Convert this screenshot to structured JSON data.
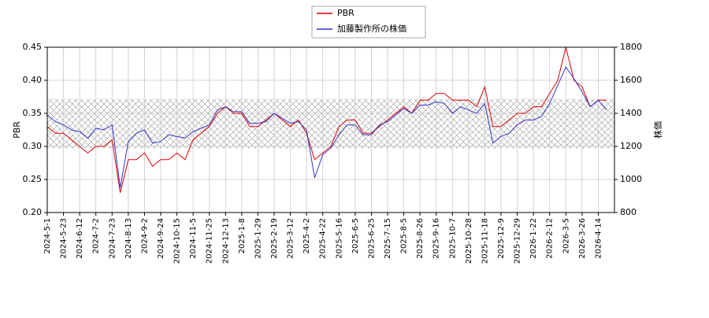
{
  "chart_data": {
    "type": "line",
    "y_label": "PBR",
    "y2_label": "株価",
    "categories": [
      "2024-5-1",
      null,
      "2024-5-23",
      null,
      "2024-6-12",
      null,
      "2024-7-2",
      null,
      "2024-7-23",
      null,
      "2024-8-13",
      null,
      "2024-9-2",
      null,
      "2024-9-24",
      null,
      "2024-10-15",
      null,
      "2024-11-5",
      null,
      "2024-11-25",
      null,
      "2024-12-13",
      null,
      "2025-1-8",
      null,
      "2025-1-29",
      null,
      "2025-2-19",
      null,
      "2025-3-12",
      null,
      "2025-4-2",
      null,
      "2025-4-22",
      null,
      "2025-5-16",
      null,
      "2025-6-5",
      null,
      "2025-6-25",
      null,
      "2025-7-15",
      null,
      "2025-8-5",
      null,
      "2025-8-26",
      null,
      "2025-9-16",
      null,
      "2025-10-7",
      null,
      "2025-10-28",
      null,
      "2025-11-18",
      null,
      "2025-12-9",
      null,
      "2025-12-29",
      null,
      "2026-1-22",
      null,
      "2026-2-12",
      null,
      "2026-3-5",
      null,
      "2026-3-26",
      null,
      "2026-4-14",
      null
    ],
    "series": [
      {
        "name": "PBR",
        "color": "#dd0000",
        "axis": "y",
        "values": [
          0.33,
          0.32,
          0.32,
          0.31,
          0.3,
          0.29,
          0.3,
          0.3,
          0.31,
          0.23,
          0.28,
          0.28,
          0.29,
          0.27,
          0.28,
          0.28,
          0.29,
          0.28,
          0.31,
          0.32,
          0.33,
          0.35,
          0.36,
          0.35,
          0.35,
          0.33,
          0.33,
          0.34,
          0.35,
          0.34,
          0.33,
          0.34,
          0.32,
          0.28,
          0.29,
          0.3,
          0.33,
          0.34,
          0.34,
          0.32,
          0.32,
          0.33,
          0.34,
          0.35,
          0.36,
          0.35,
          0.37,
          0.37,
          0.38,
          0.38,
          0.37,
          0.37,
          0.37,
          0.36,
          0.39,
          0.33,
          0.33,
          0.34,
          0.35,
          0.35,
          0.36,
          0.36,
          0.38,
          0.4,
          0.45,
          0.4,
          0.39,
          0.36,
          0.37,
          0.37
        ]
      },
      {
        "name": "加藤製作所の株価",
        "color": "#3333cc",
        "axis": "y2",
        "values": [
          1390,
          1350,
          1330,
          1300,
          1290,
          1250,
          1310,
          1300,
          1330,
          950,
          1230,
          1280,
          1300,
          1220,
          1230,
          1270,
          1260,
          1250,
          1290,
          1310,
          1330,
          1420,
          1440,
          1410,
          1410,
          1340,
          1340,
          1350,
          1400,
          1370,
          1340,
          1350,
          1300,
          1010,
          1150,
          1190,
          1270,
          1330,
          1330,
          1270,
          1270,
          1330,
          1350,
          1390,
          1430,
          1400,
          1450,
          1450,
          1470,
          1460,
          1400,
          1440,
          1420,
          1400,
          1460,
          1220,
          1260,
          1280,
          1330,
          1360,
          1360,
          1380,
          1460,
          1570,
          1680,
          1610,
          1530,
          1440,
          1480,
          1420
        ]
      }
    ],
    "shaded_range": [
      0.297,
      0.372
    ],
    "ylim": [
      0.2,
      0.45
    ],
    "yticks": [
      {
        "value": 0.2,
        "label": "0.20"
      },
      0.25,
      {
        "value": 0.3,
        "label": "0.30"
      },
      0.35,
      {
        "value": 0.4,
        "label": "0.40"
      },
      0.45
    ],
    "y2lim": [
      800,
      1800
    ],
    "y2ticks": [
      800,
      1000,
      1200,
      1400,
      1600,
      1800
    ],
    "grid": true
  }
}
